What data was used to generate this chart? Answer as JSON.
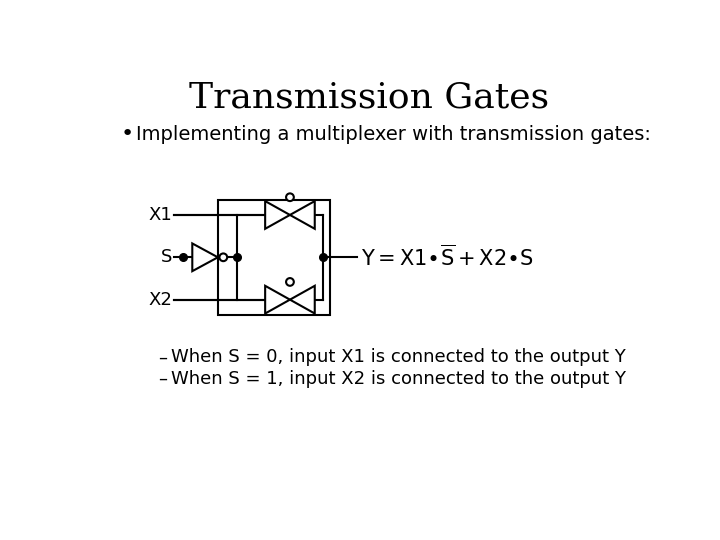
{
  "title": "Transmission Gates",
  "title_fontsize": 26,
  "bullet_text": "Implementing a multiplexer with transmission gates:",
  "bullet_fontsize": 14,
  "sub_bullet1": "When S = 0, input X1 is connected to the output Y",
  "sub_bullet2": "When S = 1, input X2 is connected to the output Y",
  "sub_bullet_fontsize": 13,
  "bg_color": "#ffffff",
  "text_color": "#000000",
  "label_fontsize": 13,
  "eq_fontsize": 15
}
